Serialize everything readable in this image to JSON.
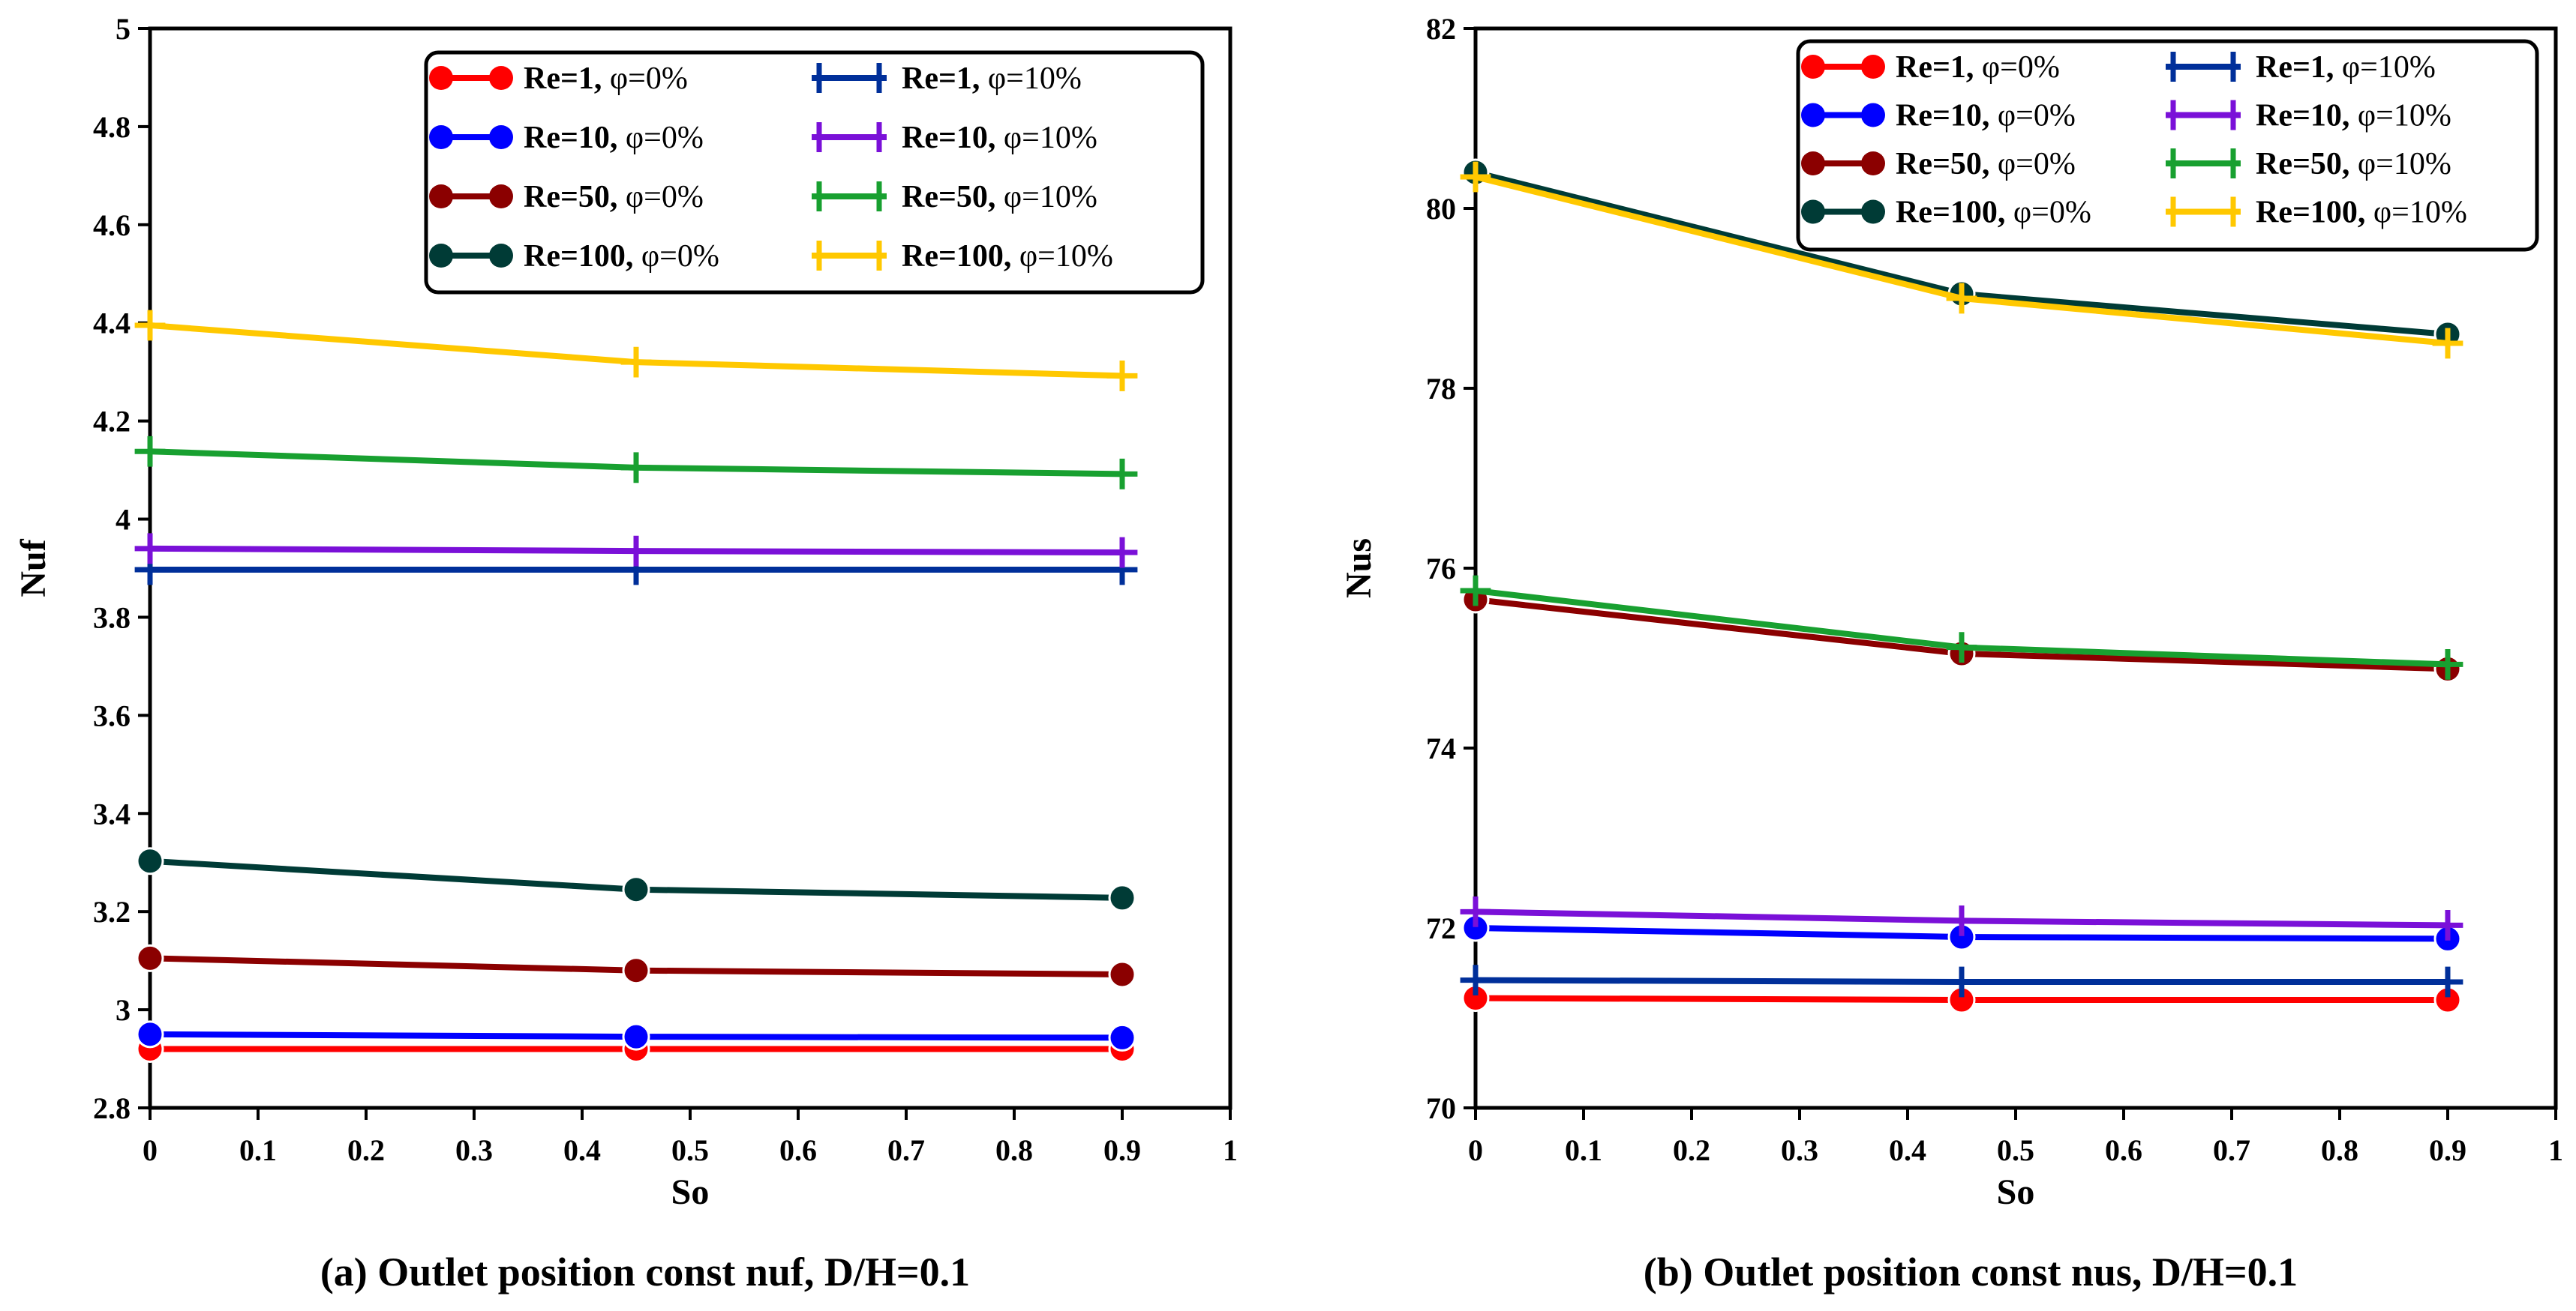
{
  "chart_data": [
    {
      "type": "line",
      "caption": "(a) Outlet position const nuf, D/H=0.1",
      "xlabel": "So",
      "ylabel": "Nuf",
      "xlim": [
        0,
        1
      ],
      "ylim": [
        2.8,
        5
      ],
      "xticks": [
        "0",
        "0.1",
        "0.2",
        "0.3",
        "0.4",
        "0.5",
        "0.6",
        "0.7",
        "0.8",
        "0.9",
        "1"
      ],
      "yticks": [
        "2.8",
        "3",
        "3.2",
        "3.4",
        "3.6",
        "3.8",
        "4",
        "4.2",
        "4.4",
        "4.6",
        "4.8",
        "5"
      ],
      "legend_position": "top-right",
      "x": [
        0,
        0.45,
        0.9
      ],
      "series": [
        {
          "name_bold": "Re=1,",
          "name_rest": " φ=0%",
          "marker": "circle",
          "color": "#ff0000",
          "values": [
            2.92,
            2.92,
            2.92
          ]
        },
        {
          "name_bold": "Re=10,",
          "name_rest": " φ=0%",
          "marker": "circle",
          "color": "#0000ff",
          "values": [
            2.95,
            2.945,
            2.943
          ]
        },
        {
          "name_bold": "Re=50,",
          "name_rest": " φ=0%",
          "marker": "circle",
          "color": "#8b0000",
          "values": [
            3.105,
            3.08,
            3.072
          ]
        },
        {
          "name_bold": "Re=100,",
          "name_rest": " φ=0%",
          "marker": "circle",
          "color": "#003b36",
          "values": [
            3.303,
            3.245,
            3.228
          ]
        },
        {
          "name_bold": "Re=1,",
          "name_rest": " φ=10%",
          "marker": "plus",
          "color": "#002f9a",
          "values": [
            3.897,
            3.897,
            3.897
          ]
        },
        {
          "name_bold": "Re=10,",
          "name_rest": " φ=10%",
          "marker": "plus",
          "color": "#7a10d8",
          "values": [
            3.94,
            3.935,
            3.932
          ]
        },
        {
          "name_bold": "Re=50,",
          "name_rest": " φ=10%",
          "marker": "plus",
          "color": "#18a030",
          "values": [
            4.138,
            4.105,
            4.092
          ]
        },
        {
          "name_bold": "Re=100,",
          "name_rest": " φ=10%",
          "marker": "plus",
          "color": "#ffc800",
          "values": [
            4.395,
            4.32,
            4.292
          ]
        }
      ]
    },
    {
      "type": "line",
      "caption": "(b) Outlet position const nus, D/H=0.1",
      "xlabel": "So",
      "ylabel": "Nus",
      "xlim": [
        0,
        1
      ],
      "ylim": [
        70,
        82
      ],
      "xticks": [
        "0",
        "0.1",
        "0.2",
        "0.3",
        "0.4",
        "0.5",
        "0.6",
        "0.7",
        "0.8",
        "0.9",
        "1"
      ],
      "yticks": [
        "70",
        "72",
        "74",
        "76",
        "78",
        "80",
        "82"
      ],
      "legend_position": "top-right",
      "x": [
        0,
        0.45,
        0.9
      ],
      "series": [
        {
          "name_bold": "Re=1,",
          "name_rest": " φ=0%",
          "marker": "circle",
          "color": "#ff0000",
          "values": [
            71.22,
            71.2,
            71.2
          ]
        },
        {
          "name_bold": "Re=10,",
          "name_rest": " φ=0%",
          "marker": "circle",
          "color": "#0000ff",
          "values": [
            72.0,
            71.9,
            71.88
          ]
        },
        {
          "name_bold": "Re=50,",
          "name_rest": " φ=0%",
          "marker": "circle",
          "color": "#8b0000",
          "values": [
            75.65,
            75.05,
            74.88
          ]
        },
        {
          "name_bold": "Re=100,",
          "name_rest": " φ=0%",
          "marker": "circle",
          "color": "#003b36",
          "values": [
            80.4,
            79.05,
            78.6
          ]
        },
        {
          "name_bold": "Re=1,",
          "name_rest": " φ=10%",
          "marker": "plus",
          "color": "#002f9a",
          "values": [
            71.42,
            71.4,
            71.4
          ]
        },
        {
          "name_bold": "Re=10,",
          "name_rest": " φ=10%",
          "marker": "plus",
          "color": "#7a10d8",
          "values": [
            72.18,
            72.08,
            72.03
          ]
        },
        {
          "name_bold": "Re=50,",
          "name_rest": " φ=10%",
          "marker": "plus",
          "color": "#18a030",
          "values": [
            75.75,
            75.12,
            74.93
          ]
        },
        {
          "name_bold": "Re=100,",
          "name_rest": " φ=10%",
          "marker": "plus",
          "color": "#ffc800",
          "values": [
            80.35,
            79.0,
            78.5
          ]
        }
      ]
    }
  ]
}
